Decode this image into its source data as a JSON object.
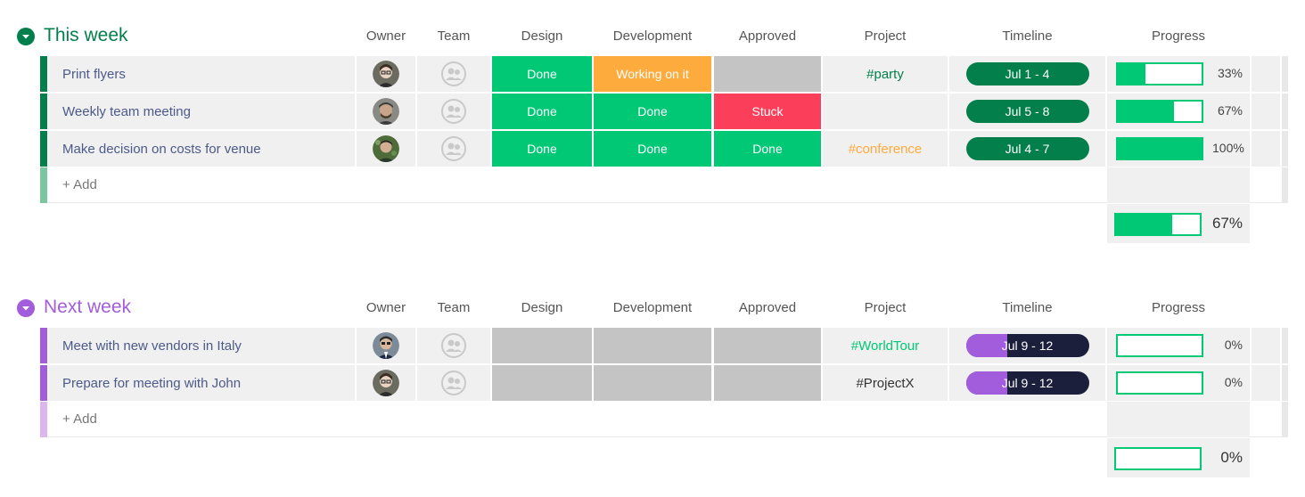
{
  "columns": {
    "owner": "Owner",
    "team": "Team",
    "design": "Design",
    "development": "Development",
    "approved": "Approved",
    "project": "Project",
    "timeline": "Timeline",
    "progress": "Progress"
  },
  "colors": {
    "green_group": "#037f4c",
    "purple_group": "#a25ddc",
    "done": "#00c875",
    "working": "#fdab3d",
    "stuck": "#e2445c",
    "empty_status": "#c4c4c4",
    "timeline_green": "#037f4c",
    "timeline_dark": "#1c1f3b"
  },
  "groups": [
    {
      "title": "This week",
      "toggle_icon": "chevron-down-icon",
      "add_label": "+ Add",
      "summary_progress": "67%",
      "rows": [
        {
          "name": "Print flyers",
          "design": "Done",
          "development": "Working on it",
          "approved": "",
          "project": "#party",
          "timeline": "Jul 1 - 4",
          "progress": "33%"
        },
        {
          "name": "Weekly team meeting",
          "design": "Done",
          "development": "Done",
          "approved": "Stuck",
          "project": "",
          "timeline": "Jul 5 - 8",
          "progress": "67%"
        },
        {
          "name": "Make decision on costs for venue",
          "design": "Done",
          "development": "Done",
          "approved": "Done",
          "project": "#conference",
          "timeline": "Jul 4 - 7",
          "progress": "100%"
        }
      ]
    },
    {
      "title": "Next week",
      "toggle_icon": "chevron-down-icon",
      "add_label": "+ Add",
      "summary_progress": "0%",
      "rows": [
        {
          "name": "Meet with new vendors in Italy",
          "design": "",
          "development": "",
          "approved": "",
          "project": "#WorldTour",
          "timeline": "Jul 9 - 12",
          "progress": "0%"
        },
        {
          "name": "Prepare for meeting with John",
          "design": "",
          "development": "",
          "approved": "",
          "project": "#ProjectX",
          "timeline": "Jul 9 - 12",
          "progress": "0%"
        }
      ]
    }
  ]
}
